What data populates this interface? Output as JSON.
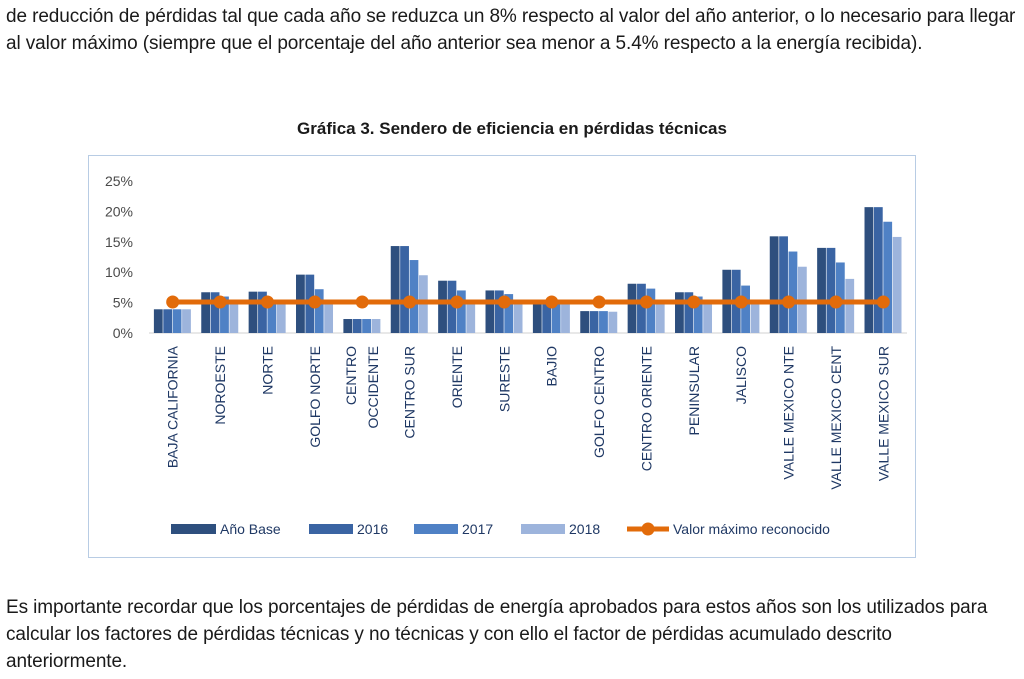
{
  "text": {
    "paragraph_top": "de reducción de pérdidas tal que cada año se reduzca un 8% respecto al valor del año anterior, o lo necesario para llegar al valor máximo (siempre que el porcentaje del año anterior sea menor a 5.4% respecto a la energía recibida).",
    "paragraph_bottom": "Es importante recordar que los porcentajes de pérdidas de energía aprobados para estos años son los utilizados para calcular los factores de pérdidas técnicas y no técnicas y con ello el factor de pérdidas acumulado descrito anteriormente."
  },
  "chart_data": {
    "type": "bar",
    "title": "Gráfica 3. Sendero de eficiencia en pérdidas técnicas",
    "categories": [
      [
        "BAJA CALIFORNIA"
      ],
      [
        "NOROESTE"
      ],
      [
        "NORTE"
      ],
      [
        "GOLFO NORTE"
      ],
      [
        "CENTRO",
        "OCCIDENTE"
      ],
      [
        "CENTRO SUR"
      ],
      [
        "ORIENTE"
      ],
      [
        "SURESTE"
      ],
      [
        "BAJIO"
      ],
      [
        "GOLFO CENTRO"
      ],
      [
        "CENTRO ORIENTE"
      ],
      [
        "PENINSULAR"
      ],
      [
        "JALISCO"
      ],
      [
        "VALLE MEXICO NTE"
      ],
      [
        "VALLE MEXICO CENT"
      ],
      [
        "VALLE MEXICO SUR"
      ]
    ],
    "y_ticks": [
      "0%",
      "5%",
      "10%",
      "15%",
      "20%",
      "25%"
    ],
    "ylim": [
      0,
      25
    ],
    "y_unit": "%",
    "series": [
      {
        "name": "Año Base",
        "color": "#2e4f7e",
        "values": [
          3.9,
          6.7,
          6.8,
          9.6,
          2.3,
          14.3,
          8.6,
          7.0,
          5.4,
          3.6,
          8.1,
          6.7,
          10.4,
          15.9,
          14.0,
          20.7
        ]
      },
      {
        "name": "2016",
        "color": "#3a64a3",
        "values": [
          3.9,
          6.7,
          6.8,
          9.6,
          2.3,
          14.3,
          8.6,
          7.0,
          5.4,
          3.6,
          8.1,
          6.7,
          10.4,
          15.9,
          14.0,
          20.7
        ]
      },
      {
        "name": "2017",
        "color": "#4f81c5",
        "values": [
          3.9,
          6.0,
          5.5,
          7.2,
          2.3,
          12.0,
          7.0,
          6.4,
          5.1,
          3.6,
          7.3,
          6.0,
          7.8,
          13.4,
          11.6,
          18.3
        ]
      },
      {
        "name": "2018",
        "color": "#9db4dc",
        "values": [
          3.9,
          5.2,
          5.1,
          5.1,
          2.3,
          9.5,
          5.1,
          5.1,
          5.1,
          3.5,
          5.1,
          5.1,
          5.1,
          10.9,
          8.9,
          15.8
        ]
      }
    ],
    "line": {
      "name": "Valor máximo reconocido",
      "color": "#e26b0a",
      "values": [
        5.1,
        5.1,
        5.1,
        5.1,
        5.1,
        5.1,
        5.1,
        5.1,
        5.1,
        5.1,
        5.1,
        5.1,
        5.1,
        5.1,
        5.1,
        5.1
      ]
    },
    "grid": false,
    "legend_position": "bottom"
  }
}
